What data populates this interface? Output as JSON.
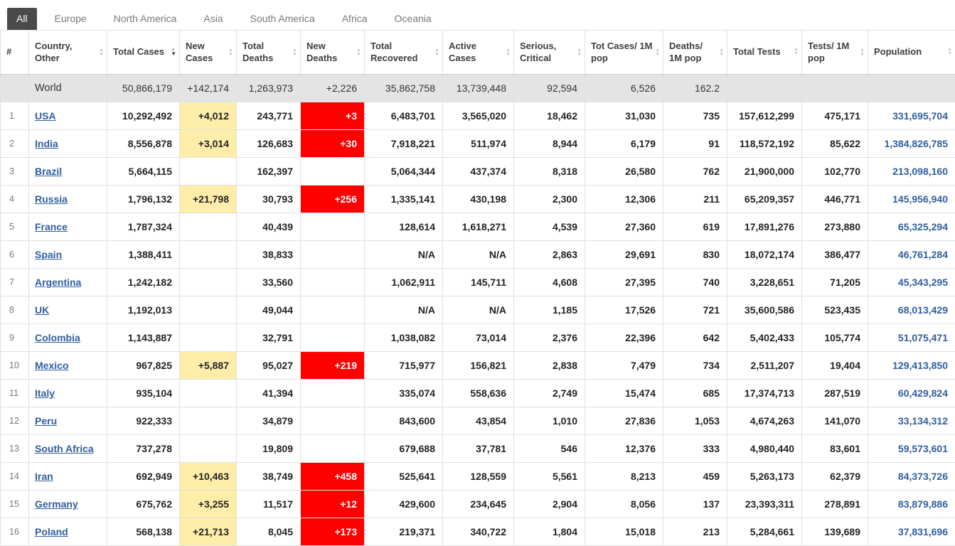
{
  "colors": {
    "tab_active_bg": "#4a4a4a",
    "link_blue": "#2f5e9e",
    "new_cases_yellow": "#ffeeaa",
    "new_deaths_red": "#ff0000",
    "world_row_bg": "#e4e4e4"
  },
  "tabs": [
    {
      "label": "All",
      "active": true
    },
    {
      "label": "Europe",
      "active": false
    },
    {
      "label": "North America",
      "active": false
    },
    {
      "label": "Asia",
      "active": false
    },
    {
      "label": "South America",
      "active": false
    },
    {
      "label": "Africa",
      "active": false
    },
    {
      "label": "Oceania",
      "active": false
    }
  ],
  "table": {
    "columns": [
      {
        "key": "rank",
        "label": "#",
        "sortable": false
      },
      {
        "key": "country",
        "label": "Country, Other",
        "sortable": true
      },
      {
        "key": "total_cases",
        "label": "Total Cases",
        "sortable": true,
        "sorted": "desc"
      },
      {
        "key": "new_cases",
        "label": "New Cases",
        "sortable": true,
        "highlight": "yellow"
      },
      {
        "key": "total_deaths",
        "label": "Total Deaths",
        "sortable": true
      },
      {
        "key": "new_deaths",
        "label": "New Deaths",
        "sortable": true,
        "highlight": "red"
      },
      {
        "key": "total_recovered",
        "label": "Total Recovered",
        "sortable": true
      },
      {
        "key": "active_cases",
        "label": "Active Cases",
        "sortable": true
      },
      {
        "key": "serious_critical",
        "label": "Serious, Critical",
        "sortable": true
      },
      {
        "key": "tot_cases_1m",
        "label": "Tot Cases/ 1M pop",
        "sortable": true
      },
      {
        "key": "deaths_1m",
        "label": "Deaths/ 1M pop",
        "sortable": true
      },
      {
        "key": "total_tests",
        "label": "Total Tests",
        "sortable": true
      },
      {
        "key": "tests_1m",
        "label": "Tests/ 1M pop",
        "sortable": true
      },
      {
        "key": "population",
        "label": "Population",
        "sortable": true
      }
    ],
    "world_row": {
      "rank": "",
      "country": "World",
      "total_cases": "50,866,179",
      "new_cases": "+142,174",
      "total_deaths": "1,263,973",
      "new_deaths": "+2,226",
      "total_recovered": "35,862,758",
      "active_cases": "13,739,448",
      "serious_critical": "92,594",
      "tot_cases_1m": "6,526",
      "deaths_1m": "162.2",
      "total_tests": "",
      "tests_1m": "",
      "population": ""
    },
    "rows": [
      {
        "rank": "1",
        "country": "USA",
        "total_cases": "10,292,492",
        "new_cases": "+4,012",
        "total_deaths": "243,771",
        "new_deaths": "+3",
        "total_recovered": "6,483,701",
        "active_cases": "3,565,020",
        "serious_critical": "18,462",
        "tot_cases_1m": "31,030",
        "deaths_1m": "735",
        "total_tests": "157,612,299",
        "tests_1m": "475,171",
        "population": "331,695,704"
      },
      {
        "rank": "2",
        "country": "India",
        "total_cases": "8,556,878",
        "new_cases": "+3,014",
        "total_deaths": "126,683",
        "new_deaths": "+30",
        "total_recovered": "7,918,221",
        "active_cases": "511,974",
        "serious_critical": "8,944",
        "tot_cases_1m": "6,179",
        "deaths_1m": "91",
        "total_tests": "118,572,192",
        "tests_1m": "85,622",
        "population": "1,384,826,785"
      },
      {
        "rank": "3",
        "country": "Brazil",
        "total_cases": "5,664,115",
        "new_cases": "",
        "total_deaths": "162,397",
        "new_deaths": "",
        "total_recovered": "5,064,344",
        "active_cases": "437,374",
        "serious_critical": "8,318",
        "tot_cases_1m": "26,580",
        "deaths_1m": "762",
        "total_tests": "21,900,000",
        "tests_1m": "102,770",
        "population": "213,098,160"
      },
      {
        "rank": "4",
        "country": "Russia",
        "total_cases": "1,796,132",
        "new_cases": "+21,798",
        "total_deaths": "30,793",
        "new_deaths": "+256",
        "total_recovered": "1,335,141",
        "active_cases": "430,198",
        "serious_critical": "2,300",
        "tot_cases_1m": "12,306",
        "deaths_1m": "211",
        "total_tests": "65,209,357",
        "tests_1m": "446,771",
        "population": "145,956,940"
      },
      {
        "rank": "5",
        "country": "France",
        "total_cases": "1,787,324",
        "new_cases": "",
        "total_deaths": "40,439",
        "new_deaths": "",
        "total_recovered": "128,614",
        "active_cases": "1,618,271",
        "serious_critical": "4,539",
        "tot_cases_1m": "27,360",
        "deaths_1m": "619",
        "total_tests": "17,891,276",
        "tests_1m": "273,880",
        "population": "65,325,294"
      },
      {
        "rank": "6",
        "country": "Spain",
        "total_cases": "1,388,411",
        "new_cases": "",
        "total_deaths": "38,833",
        "new_deaths": "",
        "total_recovered": "N/A",
        "active_cases": "N/A",
        "serious_critical": "2,863",
        "tot_cases_1m": "29,691",
        "deaths_1m": "830",
        "total_tests": "18,072,174",
        "tests_1m": "386,477",
        "population": "46,761,284"
      },
      {
        "rank": "7",
        "country": "Argentina",
        "total_cases": "1,242,182",
        "new_cases": "",
        "total_deaths": "33,560",
        "new_deaths": "",
        "total_recovered": "1,062,911",
        "active_cases": "145,711",
        "serious_critical": "4,608",
        "tot_cases_1m": "27,395",
        "deaths_1m": "740",
        "total_tests": "3,228,651",
        "tests_1m": "71,205",
        "population": "45,343,295"
      },
      {
        "rank": "8",
        "country": "UK",
        "total_cases": "1,192,013",
        "new_cases": "",
        "total_deaths": "49,044",
        "new_deaths": "",
        "total_recovered": "N/A",
        "active_cases": "N/A",
        "serious_critical": "1,185",
        "tot_cases_1m": "17,526",
        "deaths_1m": "721",
        "total_tests": "35,600,586",
        "tests_1m": "523,435",
        "population": "68,013,429"
      },
      {
        "rank": "9",
        "country": "Colombia",
        "total_cases": "1,143,887",
        "new_cases": "",
        "total_deaths": "32,791",
        "new_deaths": "",
        "total_recovered": "1,038,082",
        "active_cases": "73,014",
        "serious_critical": "2,376",
        "tot_cases_1m": "22,396",
        "deaths_1m": "642",
        "total_tests": "5,402,433",
        "tests_1m": "105,774",
        "population": "51,075,471"
      },
      {
        "rank": "10",
        "country": "Mexico",
        "total_cases": "967,825",
        "new_cases": "+5,887",
        "total_deaths": "95,027",
        "new_deaths": "+219",
        "total_recovered": "715,977",
        "active_cases": "156,821",
        "serious_critical": "2,838",
        "tot_cases_1m": "7,479",
        "deaths_1m": "734",
        "total_tests": "2,511,207",
        "tests_1m": "19,404",
        "population": "129,413,850"
      },
      {
        "rank": "11",
        "country": "Italy",
        "total_cases": "935,104",
        "new_cases": "",
        "total_deaths": "41,394",
        "new_deaths": "",
        "total_recovered": "335,074",
        "active_cases": "558,636",
        "serious_critical": "2,749",
        "tot_cases_1m": "15,474",
        "deaths_1m": "685",
        "total_tests": "17,374,713",
        "tests_1m": "287,519",
        "population": "60,429,824"
      },
      {
        "rank": "12",
        "country": "Peru",
        "total_cases": "922,333",
        "new_cases": "",
        "total_deaths": "34,879",
        "new_deaths": "",
        "total_recovered": "843,600",
        "active_cases": "43,854",
        "serious_critical": "1,010",
        "tot_cases_1m": "27,836",
        "deaths_1m": "1,053",
        "total_tests": "4,674,263",
        "tests_1m": "141,070",
        "population": "33,134,312"
      },
      {
        "rank": "13",
        "country": "South Africa",
        "total_cases": "737,278",
        "new_cases": "",
        "total_deaths": "19,809",
        "new_deaths": "",
        "total_recovered": "679,688",
        "active_cases": "37,781",
        "serious_critical": "546",
        "tot_cases_1m": "12,376",
        "deaths_1m": "333",
        "total_tests": "4,980,440",
        "tests_1m": "83,601",
        "population": "59,573,601"
      },
      {
        "rank": "14",
        "country": "Iran",
        "total_cases": "692,949",
        "new_cases": "+10,463",
        "total_deaths": "38,749",
        "new_deaths": "+458",
        "total_recovered": "525,641",
        "active_cases": "128,559",
        "serious_critical": "5,561",
        "tot_cases_1m": "8,213",
        "deaths_1m": "459",
        "total_tests": "5,263,173",
        "tests_1m": "62,379",
        "population": "84,373,726"
      },
      {
        "rank": "15",
        "country": "Germany",
        "total_cases": "675,762",
        "new_cases": "+3,255",
        "total_deaths": "11,517",
        "new_deaths": "+12",
        "total_recovered": "429,600",
        "active_cases": "234,645",
        "serious_critical": "2,904",
        "tot_cases_1m": "8,056",
        "deaths_1m": "137",
        "total_tests": "23,393,311",
        "tests_1m": "278,891",
        "population": "83,879,886"
      },
      {
        "rank": "16",
        "country": "Poland",
        "total_cases": "568,138",
        "new_cases": "+21,713",
        "total_deaths": "8,045",
        "new_deaths": "+173",
        "total_recovered": "219,371",
        "active_cases": "340,722",
        "serious_critical": "1,804",
        "tot_cases_1m": "15,018",
        "deaths_1m": "213",
        "total_tests": "5,284,661",
        "tests_1m": "139,689",
        "population": "37,831,696"
      }
    ]
  }
}
